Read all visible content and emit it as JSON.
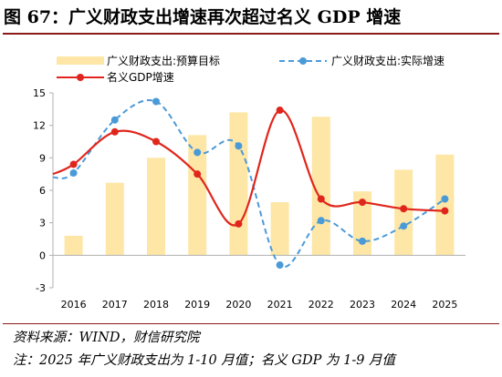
{
  "title": "图 67：广义财政支出增速再次超过名义 GDP 增速",
  "source": "资料来源：WIND，财信研究院",
  "footnote": "注：2025 年广义财政支出为 1-10 月值；名义 GDP 为 1-9 月值",
  "colors": {
    "bar": "#fde6a6",
    "actual": "#4a9ad8",
    "gdp": "#e0261c",
    "rule": "#8b1a1a"
  },
  "chart_data": {
    "type": "bar+line",
    "categories": [
      "2016",
      "2017",
      "2018",
      "2019",
      "2020",
      "2021",
      "2022",
      "2023",
      "2024",
      "2025"
    ],
    "yticks": [
      "-3",
      "0",
      "3",
      "6",
      "9",
      "12",
      "15"
    ],
    "ylim": [
      -3,
      15
    ],
    "grid": false,
    "legend_position": "top",
    "series": [
      {
        "name": "广义财政支出:预算目标",
        "kind": "bar",
        "values": [
          1.8,
          6.7,
          9.0,
          11.1,
          13.2,
          4.9,
          12.8,
          5.9,
          7.9,
          9.3
        ]
      },
      {
        "name": "广义财政支出:实际增速",
        "kind": "line-dashed-markers",
        "values": [
          7.6,
          12.5,
          14.2,
          9.5,
          10.1,
          -0.9,
          3.2,
          1.3,
          2.7,
          5.2
        ]
      },
      {
        "name": "名义GDP增速",
        "kind": "line-smooth-markers",
        "values": [
          8.4,
          11.4,
          10.5,
          7.5,
          2.9,
          13.4,
          5.2,
          4.9,
          4.3,
          4.1
        ]
      }
    ]
  }
}
